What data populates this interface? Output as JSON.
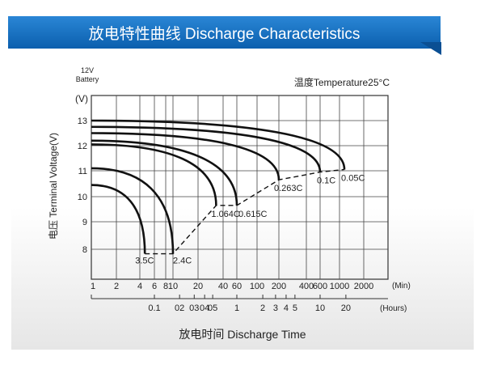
{
  "header": {
    "title": "放电特性曲线 Discharge Characteristics"
  },
  "colors": {
    "banner": "#1570c4",
    "grid": "#333333",
    "curve": "#111111"
  },
  "chart_data": {
    "type": "line",
    "title": "放电特性曲线 Discharge Characteristics",
    "battery_label": [
      "12V",
      "Battery"
    ],
    "temperature_label": "温度Temperature25°C",
    "ylabel": "电压 Terminal Voltage(V)",
    "yunit": "(V)",
    "xlabel": "放电时间 Discharge Time",
    "ylim": [
      7,
      13.9
    ],
    "yticks": [
      13,
      12,
      11,
      10,
      9,
      8
    ],
    "x_min_ticks": [
      1,
      2,
      4,
      6,
      8,
      10,
      20,
      40,
      60,
      100,
      200,
      400,
      600,
      1000,
      2000
    ],
    "x_min_tick_labels": [
      "1",
      "2",
      "4",
      "6",
      "8",
      "10",
      "20",
      "40",
      "60",
      "100",
      "200",
      "400",
      "600",
      "1000",
      "2000"
    ],
    "x_min_unit": "(Min)",
    "x_hour_ticks": [
      0.1,
      0.2,
      0.3,
      0.4,
      0.5,
      1,
      2,
      3,
      4,
      5,
      10,
      20
    ],
    "x_hour_tick_labels": [
      "0.1",
      "02",
      "03",
      "04",
      "05",
      "1",
      "2",
      "3",
      "4",
      "5",
      "10",
      "20"
    ],
    "x_hour_unit": "(Hours)",
    "series": [
      {
        "name": "3.5C",
        "start_voltage": 10.45,
        "end_minutes": 4.6,
        "end_voltage": 7.85
      },
      {
        "name": "2.4C",
        "start_voltage": 11.1,
        "end_minutes": 10,
        "end_voltage": 7.85
      },
      {
        "name": "1.064C",
        "start_voltage": 12.05,
        "end_minutes": 33,
        "end_voltage": 9.65
      },
      {
        "name": "0.615C",
        "start_voltage": 12.2,
        "end_minutes": 60,
        "end_voltage": 9.65
      },
      {
        "name": "0.263C",
        "start_voltage": 12.5,
        "end_minutes": 200,
        "end_voltage": 10.65
      },
      {
        "name": "0.1C",
        "start_voltage": 12.75,
        "end_minutes": 600,
        "end_voltage": 10.95
      },
      {
        "name": "0.05C",
        "start_voltage": 13.0,
        "end_minutes": 1150,
        "end_voltage": 11.05
      }
    ]
  }
}
